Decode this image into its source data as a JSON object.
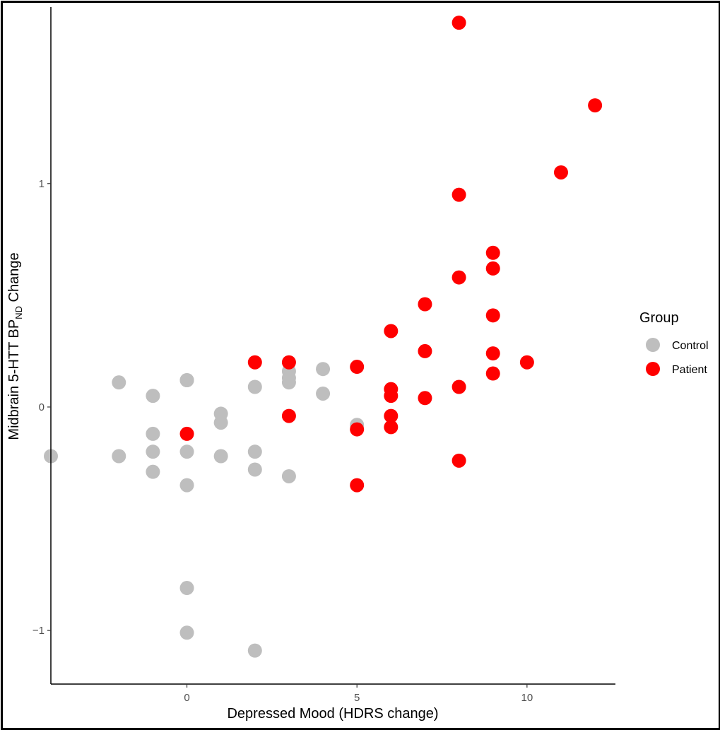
{
  "chart_data": {
    "type": "scatter",
    "xlabel": "Depressed Mood (HDRS change)",
    "ylabel": {
      "main": "Midbrain 5-HTT BP",
      "subscript": "ND",
      "suffix": " Change"
    },
    "xlim": [
      -4.0,
      12.6
    ],
    "ylim": [
      -1.24,
      1.79
    ],
    "x_ticks": [
      0,
      5,
      10
    ],
    "y_ticks": [
      -1,
      0,
      1
    ],
    "y_tick_labels": [
      "−1",
      "0",
      "1"
    ],
    "grid": false,
    "legend": {
      "title": "Group",
      "placement": "right",
      "entries": [
        {
          "label": "Control",
          "color": "#bebebe"
        },
        {
          "label": "Patient",
          "color": "#ff0000"
        }
      ]
    },
    "series": [
      {
        "name": "Control",
        "color": "#bebebe",
        "points": [
          [
            -4,
            -0.22
          ],
          [
            -2,
            0.11
          ],
          [
            -2,
            -0.22
          ],
          [
            -1,
            0.05
          ],
          [
            -1,
            -0.12
          ],
          [
            -1,
            -0.2
          ],
          [
            -1,
            -0.29
          ],
          [
            0,
            0.12
          ],
          [
            0,
            0.12
          ],
          [
            0,
            -0.2
          ],
          [
            0,
            -0.35
          ],
          [
            0,
            -0.81
          ],
          [
            0,
            -1.01
          ],
          [
            1,
            -0.03
          ],
          [
            1,
            -0.07
          ],
          [
            1,
            -0.22
          ],
          [
            2,
            0.09
          ],
          [
            2,
            -0.2
          ],
          [
            2,
            -0.28
          ],
          [
            2,
            -1.09
          ],
          [
            3,
            0.16
          ],
          [
            3,
            0.13
          ],
          [
            3,
            0.11
          ],
          [
            3,
            -0.31
          ],
          [
            4,
            0.17
          ],
          [
            4,
            0.06
          ],
          [
            5,
            -0.08
          ]
        ]
      },
      {
        "name": "Patient",
        "color": "#ff0000",
        "points": [
          [
            0,
            -0.12
          ],
          [
            2,
            0.2
          ],
          [
            3,
            0.2
          ],
          [
            3,
            -0.04
          ],
          [
            5,
            0.18
          ],
          [
            5,
            -0.1
          ],
          [
            5,
            -0.35
          ],
          [
            6,
            0.34
          ],
          [
            6,
            0.08
          ],
          [
            6,
            0.05
          ],
          [
            6,
            -0.04
          ],
          [
            6,
            -0.09
          ],
          [
            7,
            0.46
          ],
          [
            7,
            0.25
          ],
          [
            7,
            0.04
          ],
          [
            8,
            1.72
          ],
          [
            8,
            0.95
          ],
          [
            8,
            0.58
          ],
          [
            8,
            0.09
          ],
          [
            8,
            -0.24
          ],
          [
            9,
            0.69
          ],
          [
            9,
            0.62
          ],
          [
            9,
            0.41
          ],
          [
            9,
            0.24
          ],
          [
            9,
            0.15
          ],
          [
            10,
            0.2
          ],
          [
            11,
            1.05
          ],
          [
            12,
            1.35
          ]
        ]
      }
    ]
  }
}
